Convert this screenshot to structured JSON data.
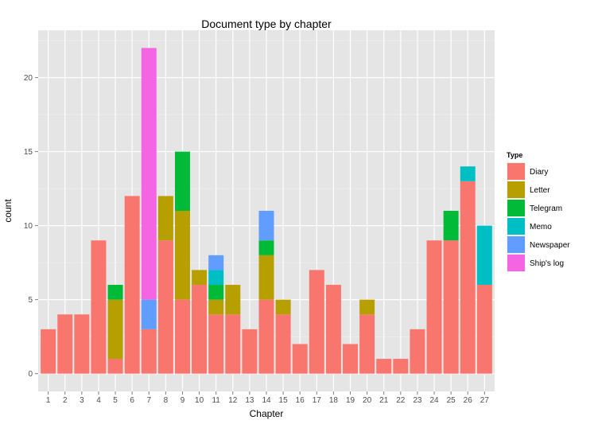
{
  "chart_data": {
    "type": "bar",
    "stacked": true,
    "title": "Document type by chapter",
    "xlabel": "Chapter",
    "ylabel": "count",
    "ylim": [
      -1.2,
      23.2
    ],
    "yticks": [
      0,
      5,
      10,
      15,
      20
    ],
    "grid": true,
    "legend": {
      "title": "Type",
      "placement": "right"
    },
    "categories": [
      "1",
      "2",
      "3",
      "4",
      "5",
      "6",
      "7",
      "8",
      "9",
      "10",
      "11",
      "12",
      "13",
      "14",
      "15",
      "16",
      "17",
      "18",
      "19",
      "20",
      "21",
      "22",
      "23",
      "24",
      "25",
      "26",
      "27"
    ],
    "series": [
      {
        "name": "Diary",
        "color": "#F8766D",
        "values": [
          3,
          4,
          4,
          9,
          1,
          12,
          3,
          9,
          5,
          6,
          4,
          4,
          3,
          5,
          4,
          2,
          7,
          6,
          2,
          4,
          1,
          1,
          3,
          9,
          9,
          13,
          6
        ]
      },
      {
        "name": "Letter",
        "color": "#B79F00",
        "values": [
          0,
          0,
          0,
          0,
          4,
          0,
          0,
          3,
          6,
          1,
          1,
          2,
          0,
          3,
          1,
          0,
          0,
          0,
          0,
          1,
          0,
          0,
          0,
          0,
          0,
          0,
          0
        ]
      },
      {
        "name": "Telegram",
        "color": "#00BA38",
        "values": [
          0,
          0,
          0,
          0,
          1,
          0,
          0,
          0,
          4,
          0,
          1,
          0,
          0,
          1,
          0,
          0,
          0,
          0,
          0,
          0,
          0,
          0,
          0,
          0,
          2,
          0,
          0
        ]
      },
      {
        "name": "Memo",
        "color": "#00BFC4",
        "values": [
          0,
          0,
          0,
          0,
          0,
          0,
          0,
          0,
          0,
          0,
          1,
          0,
          0,
          0,
          0,
          0,
          0,
          0,
          0,
          0,
          0,
          0,
          0,
          0,
          0,
          1,
          4
        ]
      },
      {
        "name": "Newspaper",
        "color": "#619CFF",
        "values": [
          0,
          0,
          0,
          0,
          0,
          0,
          2,
          0,
          0,
          0,
          1,
          0,
          0,
          2,
          0,
          0,
          0,
          0,
          0,
          0,
          0,
          0,
          0,
          0,
          0,
          0,
          0
        ]
      },
      {
        "name": "Ship's log",
        "color": "#F564E3",
        "values": [
          0,
          0,
          0,
          0,
          0,
          0,
          17,
          0,
          0,
          0,
          0,
          0,
          0,
          0,
          0,
          0,
          0,
          0,
          0,
          0,
          0,
          0,
          0,
          0,
          0,
          0,
          0
        ]
      }
    ]
  }
}
